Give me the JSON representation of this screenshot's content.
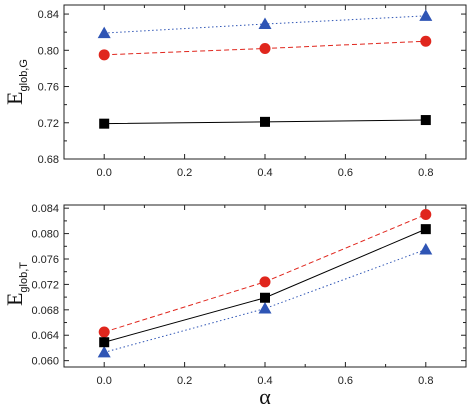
{
  "chart_data": [
    {
      "type": "line",
      "ylabel": "E",
      "ylabel_subscript": "glob,G",
      "xlabel": "",
      "x": [
        0.0,
        0.4,
        0.8
      ],
      "xlim": [
        -0.1,
        0.9
      ],
      "ylim": [
        0.68,
        0.85
      ],
      "xticks": [
        "0.0",
        "0.2",
        "0.4",
        "0.6",
        "0.8"
      ],
      "yticks": [
        "0.68",
        "0.72",
        "0.76",
        "0.80",
        "0.84"
      ],
      "grid": false,
      "series": [
        {
          "marker": "triangle",
          "color": "#2f55b5",
          "line_style": "dotted",
          "values": [
            0.819,
            0.829,
            0.838
          ]
        },
        {
          "marker": "circle",
          "color": "#e0261d",
          "line_style": "dashed",
          "values": [
            0.795,
            0.802,
            0.81
          ]
        },
        {
          "marker": "square",
          "color": "#000000",
          "line_style": "solid",
          "values": [
            0.719,
            0.721,
            0.723
          ]
        }
      ]
    },
    {
      "type": "line",
      "ylabel": "E",
      "ylabel_subscript": "glob,T",
      "xlabel": "α",
      "x": [
        0.0,
        0.4,
        0.8
      ],
      "xlim": [
        -0.1,
        0.9
      ],
      "ylim": [
        0.059,
        0.0845
      ],
      "xticks": [
        "0.0",
        "0.2",
        "0.4",
        "0.6",
        "0.8"
      ],
      "yticks": [
        "0.060",
        "0.064",
        "0.068",
        "0.072",
        "0.076",
        "0.080",
        "0.084"
      ],
      "grid": false,
      "series": [
        {
          "marker": "triangle",
          "color": "#2f55b5",
          "line_style": "dotted",
          "values": [
            0.0613,
            0.0682,
            0.0775
          ]
        },
        {
          "marker": "circle",
          "color": "#e0261d",
          "line_style": "dashed",
          "values": [
            0.0645,
            0.0724,
            0.083
          ]
        },
        {
          "marker": "square",
          "color": "#000000",
          "line_style": "solid",
          "values": [
            0.0629,
            0.0699,
            0.0807
          ]
        }
      ]
    }
  ]
}
